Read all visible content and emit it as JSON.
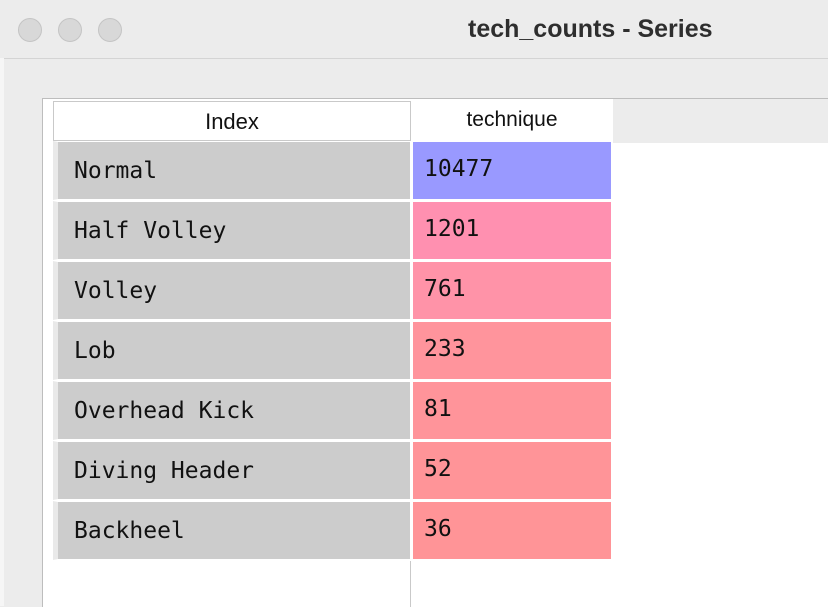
{
  "window": {
    "title": "tech_counts - Series"
  },
  "table": {
    "index_header": "Index",
    "column_header": "technique",
    "rows": [
      {
        "label": "Normal",
        "value": "10477",
        "color": "#9999ff"
      },
      {
        "label": "Half Volley",
        "value": "1201",
        "color": "#ff90b0"
      },
      {
        "label": "Volley",
        "value": "761",
        "color": "#ff93a8"
      },
      {
        "label": "Lob",
        "value": "233",
        "color": "#ff949c"
      },
      {
        "label": "Overhead Kick",
        "value": "81",
        "color": "#ff949a"
      },
      {
        "label": "Diving Header",
        "value": "52",
        "color": "#ff9498"
      },
      {
        "label": "Backheel",
        "value": "36",
        "color": "#ff9497"
      }
    ]
  }
}
